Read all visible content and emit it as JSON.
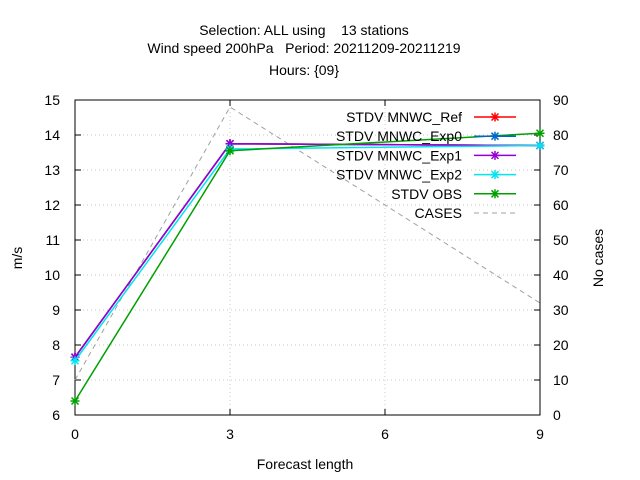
{
  "chart_data": {
    "type": "line",
    "title_lines": [
      "Selection: ALL using    13 stations",
      "Wind speed 200hPa   Period: 20211209-20211219",
      "Hours: {09}"
    ],
    "xlabel": "Forecast length",
    "ylabel": "m/s",
    "y2label": "No cases",
    "xlim": [
      0,
      9
    ],
    "ylim": [
      6,
      15
    ],
    "y2lim": [
      0,
      90
    ],
    "xticks": [
      0,
      3,
      6,
      9
    ],
    "yticks": [
      6,
      7,
      8,
      9,
      10,
      11,
      12,
      13,
      14,
      15
    ],
    "y2ticks": [
      0,
      10,
      20,
      30,
      40,
      50,
      60,
      70,
      80,
      90
    ],
    "grid": true,
    "legend_position": "top-right",
    "x": [
      0,
      3,
      9
    ],
    "series": [
      {
        "name": "STDV MNWC_Ref",
        "color": "#ff0000",
        "values": [
          7.65,
          13.75,
          13.7
        ],
        "axis": "y",
        "marker": "x"
      },
      {
        "name": "STDV MNWC_Exp0",
        "color": "#0066cc",
        "values": [
          7.65,
          13.75,
          13.7
        ],
        "axis": "y",
        "marker": "x"
      },
      {
        "name": "STDV MNWC_Exp1",
        "color": "#9400d3",
        "values": [
          7.65,
          13.75,
          13.7
        ],
        "axis": "y",
        "marker": "x"
      },
      {
        "name": "STDV MNWC_Exp2",
        "color": "#00e5ee",
        "values": [
          7.55,
          13.6,
          13.7
        ],
        "axis": "y",
        "marker": "x"
      },
      {
        "name": "STDV OBS",
        "color": "#00a000",
        "values": [
          6.4,
          13.55,
          14.05
        ],
        "axis": "y",
        "marker": "x"
      },
      {
        "name": "CASES",
        "color": "#a0a0a0",
        "values": [
          10,
          88,
          32
        ],
        "axis": "y2",
        "marker": "none",
        "dashed": true
      }
    ]
  }
}
